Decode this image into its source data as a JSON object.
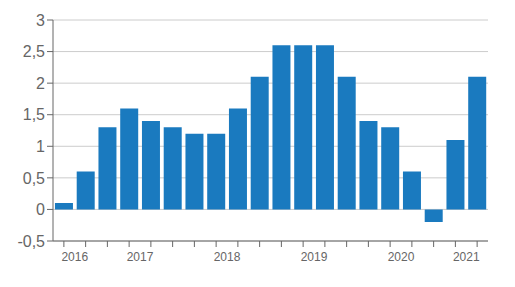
{
  "chart_data": {
    "type": "bar",
    "categories": [
      "2016",
      null,
      null,
      "2017",
      null,
      null,
      null,
      "2018",
      null,
      null,
      null,
      "2019",
      null,
      null,
      null,
      "2020",
      null,
      null,
      "2021",
      null
    ],
    "values": [
      0.1,
      0.6,
      1.3,
      1.6,
      1.4,
      1.3,
      1.2,
      1.2,
      1.6,
      2.1,
      2.6,
      2.6,
      2.6,
      2.1,
      1.4,
      1.3,
      0.6,
      -0.2,
      1.1,
      2.1
    ],
    "color": "#1a7abf",
    "ylim": [
      -0.5,
      3.0
    ],
    "yticks": [
      {
        "value": -0.5,
        "label": "-0,5"
      },
      0,
      {
        "value": 0.5,
        "label": "0,5"
      },
      1,
      {
        "value": 1.5,
        "label": "1,5"
      },
      2,
      {
        "value": 2.5,
        "label": "2,5"
      },
      3
    ],
    "grid": true
  }
}
